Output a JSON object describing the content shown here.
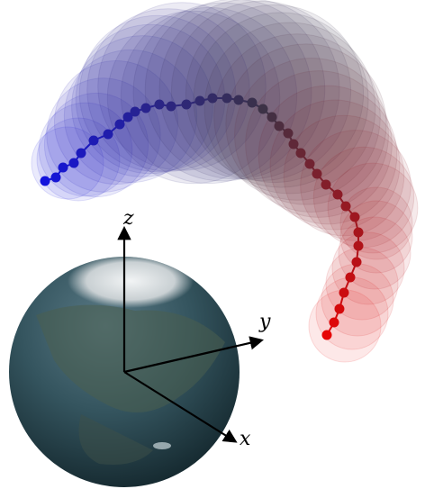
{
  "axes": {
    "z": "z",
    "y": "y",
    "x": "x"
  }
}
